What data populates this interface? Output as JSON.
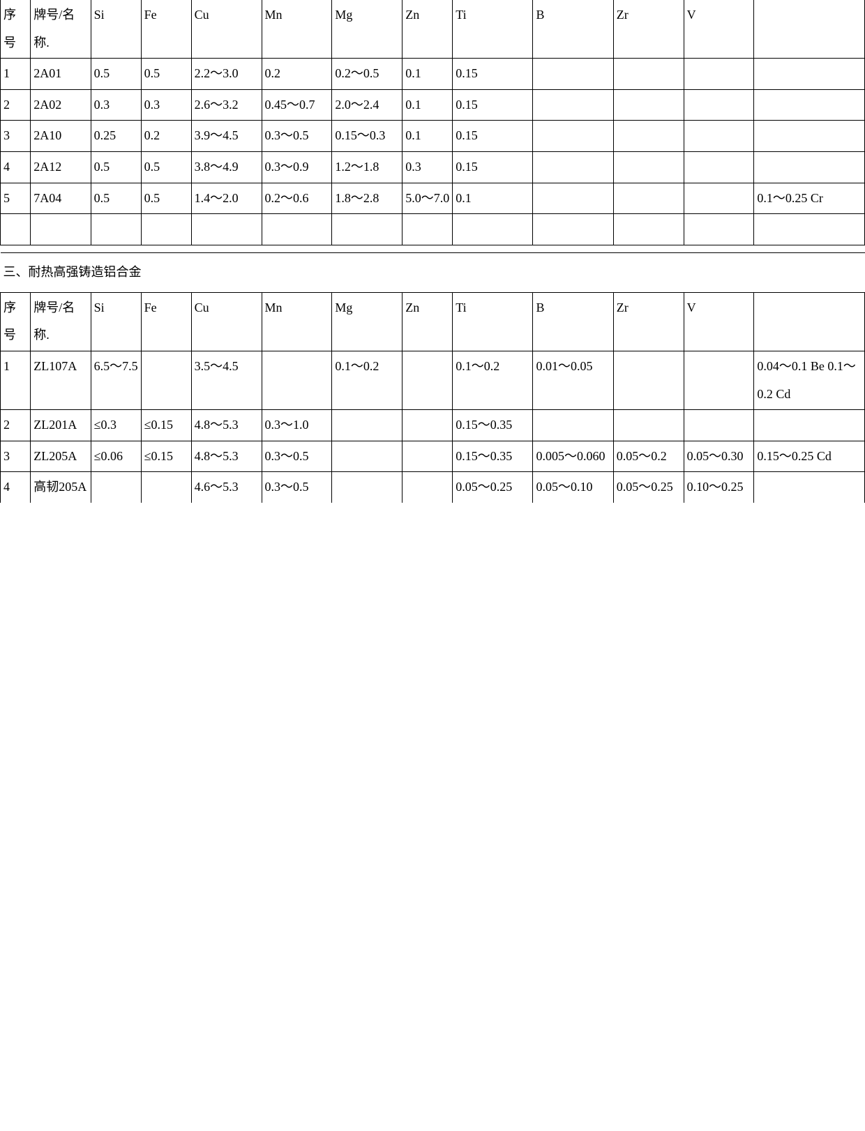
{
  "table1": {
    "headers": [
      "序号",
      "牌号/名称.",
      "Si",
      "Fe",
      "Cu",
      "Mn",
      "Mg",
      "Zn",
      "Ti",
      "B",
      "Zr",
      "V",
      ""
    ],
    "rows": [
      [
        "1",
        "2A01",
        "0.5",
        "0.5",
        "2.2～3.0",
        "0.2",
        "0.2～0.5",
        "0.1",
        "0.15",
        "",
        "",
        "",
        ""
      ],
      [
        "2",
        "2A02",
        "0.3",
        "0.3",
        "2.6～3.2",
        "0.45～0.7",
        "2.0～2.4",
        "0.1",
        "0.15",
        "",
        "",
        "",
        ""
      ],
      [
        "3",
        "2A10",
        "0.25",
        "0.2",
        "3.9～4.5",
        "0.3～0.5",
        "0.15～0.3",
        "0.1",
        "0.15",
        "",
        "",
        "",
        ""
      ],
      [
        "4",
        "2A12",
        "0.5",
        "0.5",
        "3.8～4.9",
        "0.3～0.9",
        "1.2～1.8",
        "0.3",
        "0.15",
        "",
        "",
        "",
        ""
      ],
      [
        "5",
        "7A04",
        "0.5",
        "0.5",
        "1.4～2.0",
        "0.2～0.6",
        "1.8～2.8",
        "5.0～7.0",
        "0.1",
        "",
        "",
        "",
        "0.1～0.25 Cr"
      ]
    ]
  },
  "section_title": "三、耐热高强铸造铝合金",
  "table2": {
    "headers": [
      "序号",
      "牌号/名称.",
      "Si",
      "Fe",
      "Cu",
      "Mn",
      "Mg",
      "Zn",
      "Ti",
      "B",
      "Zr",
      "V",
      ""
    ],
    "rows": [
      [
        "1",
        "ZL107A",
        "6.5～7.5",
        "",
        "3.5～4.5",
        "",
        "0.1～0.2",
        "",
        "0.1～0.2",
        "0.01～0.05",
        "",
        "",
        "0.04～0.1 Be 0.1～0.2 Cd"
      ],
      [
        "2",
        "ZL201A",
        "≤0.3",
        "≤0.15",
        "4.8～5.3",
        "0.3～1.0",
        "",
        "",
        "0.15～0.35",
        "",
        "",
        "",
        ""
      ],
      [
        "3",
        "ZL205A",
        "≤0.06",
        "≤0.15",
        "4.8～5.3",
        "0.3～0.5",
        "",
        "",
        "0.15～0.35",
        "0.005～0.060",
        "0.05～0.2",
        "0.05～0.30",
        "0.15～0.25 Cd"
      ],
      [
        "4",
        "高韧205A",
        "",
        "",
        "4.6～5.3",
        "0.3～0.5",
        "",
        "",
        "0.05～0.25",
        "0.05～0.10",
        "0.05～0.25",
        "0.10～0.25",
        ""
      ]
    ]
  }
}
